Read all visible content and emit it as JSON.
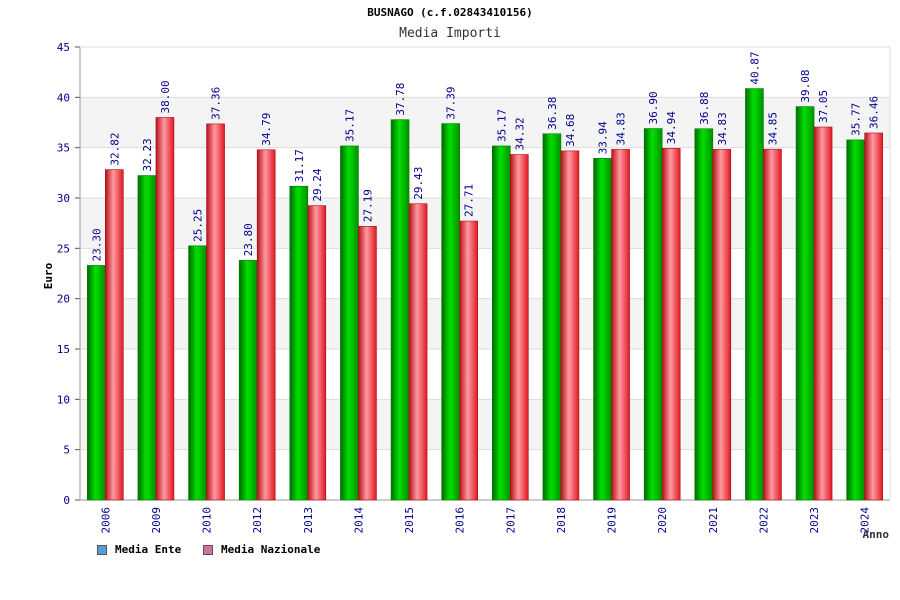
{
  "chart_data": {
    "type": "bar",
    "title": "BUSNAGO (c.f.02843410156)",
    "subtitle": "Media Importi",
    "xlabel": "Anno",
    "ylabel": "Euro",
    "ylim": [
      0,
      45
    ],
    "yticks": [
      0,
      5,
      10,
      15,
      20,
      25,
      30,
      35,
      40,
      45
    ],
    "categories": [
      "2006",
      "2009",
      "2010",
      "2012",
      "2013",
      "2014",
      "2015",
      "2016",
      "2017",
      "2018",
      "2019",
      "2020",
      "2021",
      "2022",
      "2023",
      "2024"
    ],
    "series": [
      {
        "name": "Media Ente",
        "legend_color": "#5b9bd5",
        "bar_color": "#00b400",
        "values": [
          23.3,
          32.23,
          25.25,
          23.8,
          31.17,
          35.17,
          37.78,
          37.39,
          35.17,
          36.38,
          33.94,
          36.9,
          36.88,
          40.87,
          39.08,
          35.77
        ],
        "labels": [
          "23.30",
          "32.23",
          "25.25",
          "23.80",
          "31.17",
          "35.17",
          "37.78",
          "37.39",
          "35.17",
          "36.38",
          "33.94",
          "36.90",
          "36.88",
          "40.87",
          "39.08",
          "35.77"
        ]
      },
      {
        "name": "Media Nazionale",
        "legend_color": "#d96ca0",
        "bar_color": "#e8202a",
        "values": [
          32.82,
          38.0,
          37.36,
          34.79,
          29.24,
          27.19,
          29.43,
          27.71,
          34.32,
          34.68,
          34.83,
          34.94,
          34.83,
          34.85,
          37.05,
          36.46
        ],
        "labels": [
          "32.82",
          "38.00",
          "37.36",
          "34.79",
          "29.24",
          "27.19",
          "29.43",
          "27.71",
          "34.32",
          "34.68",
          "34.83",
          "34.94",
          "34.83",
          "34.85",
          "37.05",
          "36.46"
        ]
      }
    ],
    "grid": true,
    "legend_position": "bottom-left"
  }
}
